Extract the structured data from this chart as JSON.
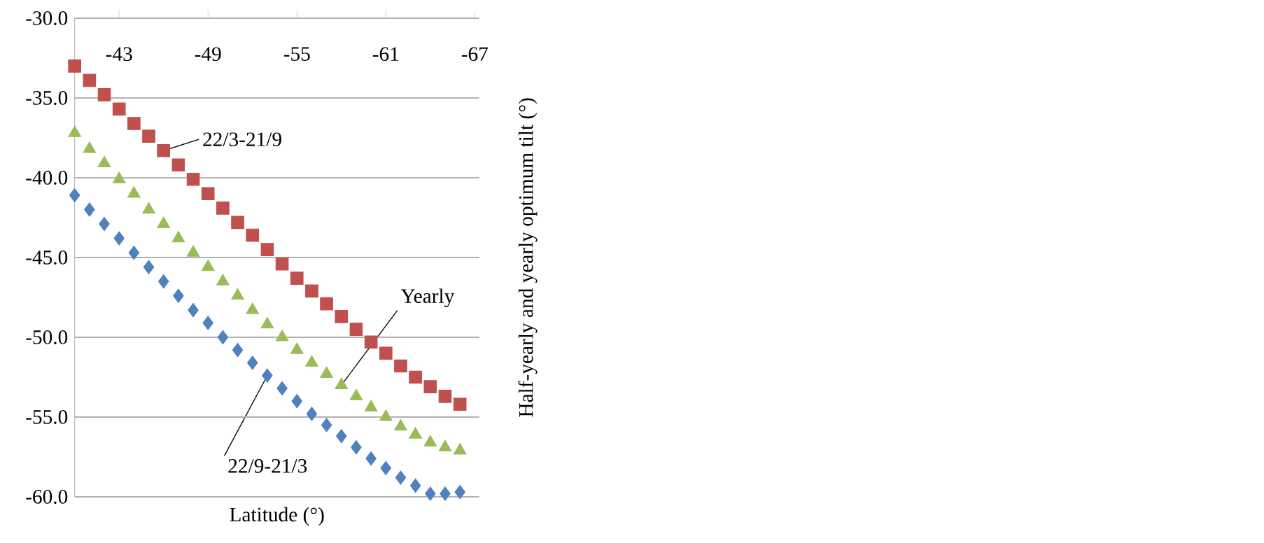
{
  "chart_data": {
    "type": "scatter",
    "xlabel": "Latitude (°)",
    "ylabel": "Half-yearly and yearly optimum tilt (°)",
    "x": [
      -40,
      -41,
      -42,
      -43,
      -44,
      -45,
      -46,
      -47,
      -48,
      -49,
      -50,
      -51,
      -52,
      -53,
      -54,
      -55,
      -56,
      -57,
      -58,
      -59,
      -60,
      -61,
      -62,
      -63,
      -64,
      -65,
      -66
    ],
    "series": [
      {
        "color": "#c0504d",
        "marker": "square",
        "values": [
          -33.0,
          -33.9,
          -34.8,
          -35.7,
          -36.6,
          -37.4,
          -38.3,
          -39.2,
          -40.1,
          -41.0,
          -41.9,
          -42.8,
          -43.6,
          -44.5,
          -45.4,
          -46.3,
          -47.1,
          -47.9,
          -48.7,
          -49.5,
          -50.3,
          -51.0,
          -51.8,
          -52.5,
          -53.1,
          -53.7,
          -54.2
        ]
      },
      {
        "color": "#9bbb59",
        "marker": "triangle",
        "values": [
          -37.2,
          -38.2,
          -39.1,
          -40.1,
          -41.0,
          -42.0,
          -42.9,
          -43.8,
          -44.7,
          -45.6,
          -46.5,
          -47.4,
          -48.3,
          -49.2,
          -50.0,
          -50.8,
          -51.6,
          -52.3,
          -53.0,
          -53.7,
          -54.4,
          -55.0,
          -55.6,
          -56.1,
          -56.6,
          -56.9,
          -57.1
        ]
      },
      {
        "color": "#4f81bd",
        "marker": "diamond",
        "values": [
          -41.1,
          -42.0,
          -42.9,
          -43.8,
          -44.7,
          -45.6,
          -46.5,
          -47.4,
          -48.3,
          -49.1,
          -50.0,
          -50.8,
          -51.6,
          -52.4,
          -53.2,
          -54.0,
          -54.8,
          -55.5,
          -56.2,
          -56.9,
          -57.6,
          -58.2,
          -58.8,
          -59.3,
          -59.8,
          -59.8,
          -59.7
        ]
      }
    ],
    "xlim": [
      -40,
      -67.3
    ],
    "xticks": [
      -43,
      -49,
      -55,
      -61,
      -67
    ],
    "ylim": [
      -60,
      -30
    ],
    "yticks": [
      {
        "value": -60,
        "label": "-60.0"
      },
      {
        "value": -55,
        "label": "-55.0"
      },
      {
        "value": -50,
        "label": "-50.0"
      },
      {
        "value": -45,
        "label": "-45.0"
      },
      {
        "value": -40,
        "label": "-40.0"
      },
      {
        "value": -35,
        "label": "-35.0"
      },
      {
        "value": -30,
        "label": "-30.0"
      }
    ],
    "grid": "y",
    "annotations": [
      {
        "text": "22/3-21/9",
        "x": -46,
        "y": -38.3
      },
      {
        "text": "Yearly",
        "x": -58,
        "y": -53.0
      },
      {
        "text": "22/9-21/3",
        "x": -53,
        "y": -52.4
      }
    ]
  }
}
